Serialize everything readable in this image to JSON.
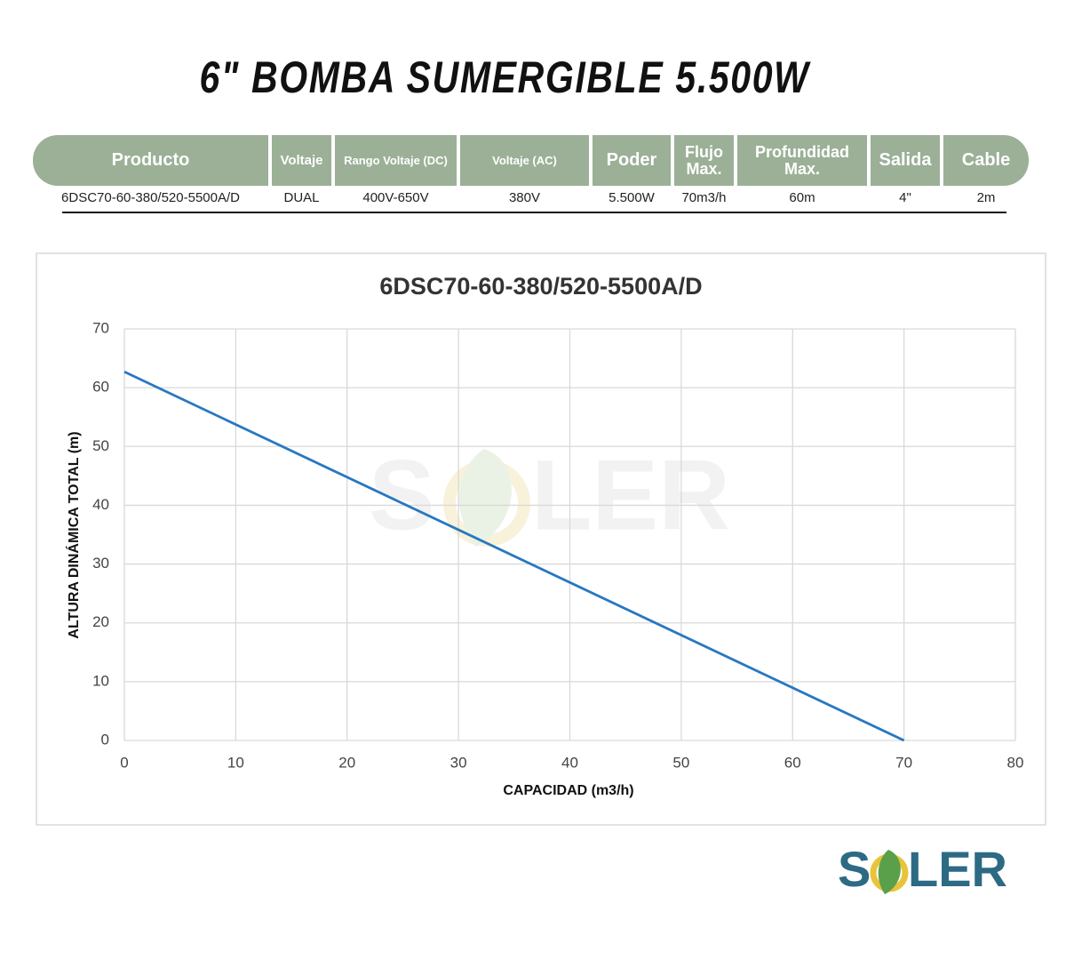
{
  "header": {
    "title": "6\" BOMBA SUMERGIBLE 5.500W"
  },
  "table": {
    "headers": [
      "Producto",
      "Voltaje",
      "Rango Voltaje (DC)",
      "Voltaje (AC)",
      "Poder",
      "Flujo Max.",
      "Profundidad Max.",
      "Salida",
      "Cable"
    ],
    "rows": [
      [
        "6DSC70-60-380/520-5500A/D",
        "DUAL",
        "400V-650V",
        "380V",
        "5.500W",
        "70m3/h",
        "60m",
        "4\"",
        "2m"
      ]
    ]
  },
  "chart_data": {
    "type": "line",
    "title": "6DSC70-60-380/520-5500A/D",
    "x_label": "CAPACIDAD (m3/h)",
    "y_label": "ALTURA DINÁMICA TOTAL (m)",
    "x": [
      0,
      70
    ],
    "series": [
      {
        "color": "#2878c0",
        "values": [
          62.7,
          0
        ]
      }
    ],
    "xlim": [
      0,
      80
    ],
    "xticks": [
      0,
      10,
      20,
      30,
      40,
      50,
      60,
      70,
      80
    ],
    "ylim": [
      0,
      70
    ],
    "yticks": [
      0,
      10,
      20,
      30,
      40,
      50,
      60,
      70
    ],
    "grid": true
  },
  "logo": {
    "left": "S",
    "right": "LER"
  }
}
